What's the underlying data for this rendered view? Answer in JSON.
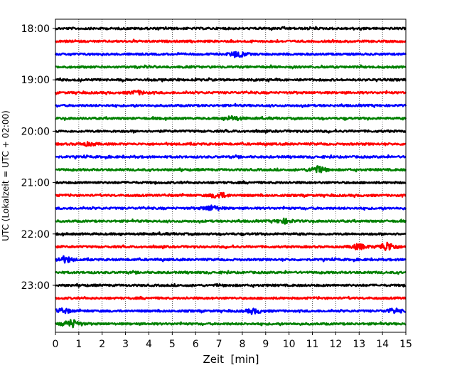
{
  "chart_data": {
    "type": "line",
    "title": "",
    "xlabel": "Zeit  [min]",
    "ylabel": "UTC (Lokalzeit = UTC + 02:00)",
    "xlim": [
      0,
      15
    ],
    "x_ticks": [
      "0",
      "1",
      "2",
      "3",
      "4",
      "5",
      "6",
      "7",
      "8",
      "9",
      "10",
      "11",
      "12",
      "13",
      "14",
      "15"
    ],
    "y_tick_labels": [
      "18:00",
      "19:00",
      "20:00",
      "21:00",
      "22:00",
      "23:00"
    ],
    "grid": "vertical-dotted",
    "trace_start_times": [
      "18:00",
      "18:15",
      "18:30",
      "18:45",
      "19:00",
      "19:15",
      "19:30",
      "19:45",
      "20:00",
      "20:15",
      "20:30",
      "20:45",
      "21:00",
      "21:15",
      "21:30",
      "21:45",
      "22:00",
      "22:15",
      "22:30",
      "22:45",
      "23:00",
      "23:15",
      "23:30",
      "23:45"
    ],
    "trace_colors": [
      "#000000",
      "#ff0000",
      "#0000ff",
      "#008000"
    ],
    "events": [
      {
        "trace": 2,
        "minute": 7.8,
        "amplitude": 3.2
      },
      {
        "trace": 5,
        "minute": 3.5,
        "amplitude": 2.0
      },
      {
        "trace": 7,
        "minute": 7.6,
        "amplitude": 2.5
      },
      {
        "trace": 9,
        "minute": 1.4,
        "amplitude": 1.8
      },
      {
        "trace": 11,
        "minute": 11.2,
        "amplitude": 4.0
      },
      {
        "trace": 13,
        "minute": 7.0,
        "amplitude": 3.5
      },
      {
        "trace": 14,
        "minute": 6.7,
        "amplitude": 3.2
      },
      {
        "trace": 15,
        "minute": 9.8,
        "amplitude": 2.6
      },
      {
        "trace": 17,
        "minute": 13.0,
        "amplitude": 3.2
      },
      {
        "trace": 17,
        "minute": 14.2,
        "amplitude": 5.5
      },
      {
        "trace": 18,
        "minute": 0.4,
        "amplitude": 3.5
      },
      {
        "trace": 22,
        "minute": 8.5,
        "amplitude": 2.5
      },
      {
        "trace": 22,
        "minute": 0.3,
        "amplitude": 2.8
      },
      {
        "trace": 22,
        "minute": 14.5,
        "amplitude": 2.5
      },
      {
        "trace": 23,
        "minute": 0.7,
        "amplitude": 5.0
      }
    ]
  }
}
